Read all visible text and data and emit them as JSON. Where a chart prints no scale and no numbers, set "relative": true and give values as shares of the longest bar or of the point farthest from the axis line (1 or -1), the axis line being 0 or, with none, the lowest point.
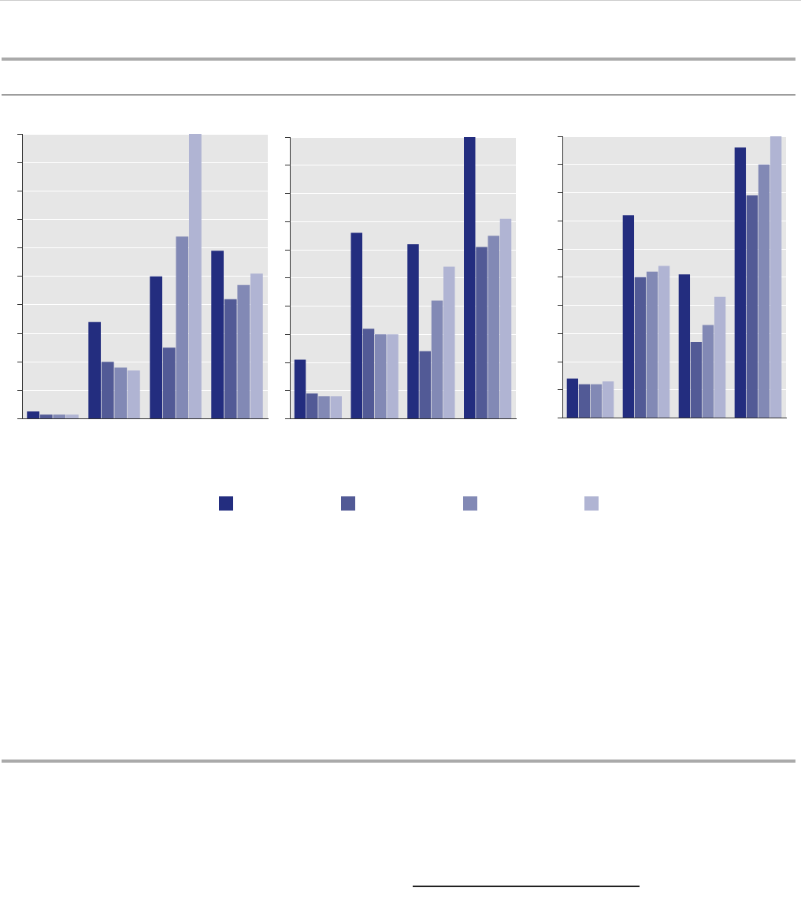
{
  "chart_data": [
    {
      "type": "bar",
      "relative": true,
      "grid": "y",
      "categories": [
        null,
        null,
        null,
        null
      ],
      "series": [
        {
          "color": "#232d7f",
          "values": [
            0.026,
            0.34,
            0.5,
            0.59
          ]
        },
        {
          "color": "#525a96",
          "values": [
            0.015,
            0.2,
            0.25,
            0.42
          ]
        },
        {
          "color": "#8289b5",
          "values": [
            0.015,
            0.18,
            0.64,
            0.47
          ]
        },
        {
          "color": "#b0b4d3",
          "values": [
            0.015,
            0.17,
            1,
            0.51
          ]
        }
      ]
    },
    {
      "type": "bar",
      "relative": true,
      "grid": "y",
      "categories": [
        null,
        null,
        null,
        null
      ],
      "series": [
        {
          "color": "#232d7f",
          "values": [
            0.21,
            0.66,
            0.62,
            1
          ]
        },
        {
          "color": "#525a96",
          "values": [
            0.09,
            0.32,
            0.24,
            0.61
          ]
        },
        {
          "color": "#8289b5",
          "values": [
            0.08,
            0.3,
            0.42,
            0.65
          ]
        },
        {
          "color": "#b0b4d3",
          "values": [
            0.08,
            0.3,
            0.54,
            0.71
          ]
        }
      ]
    },
    {
      "type": "bar",
      "relative": true,
      "grid": "y",
      "categories": [
        null,
        null,
        null,
        null
      ],
      "series": [
        {
          "color": "#232d7f",
          "values": [
            0.14,
            0.72,
            0.51,
            0.96
          ]
        },
        {
          "color": "#525a96",
          "values": [
            0.12,
            0.5,
            0.27,
            0.79
          ]
        },
        {
          "color": "#8289b5",
          "values": [
            0.12,
            0.52,
            0.33,
            0.9
          ]
        },
        {
          "color": "#b0b4d3",
          "values": [
            0.13,
            0.54,
            0.43,
            1
          ]
        }
      ]
    }
  ]
}
